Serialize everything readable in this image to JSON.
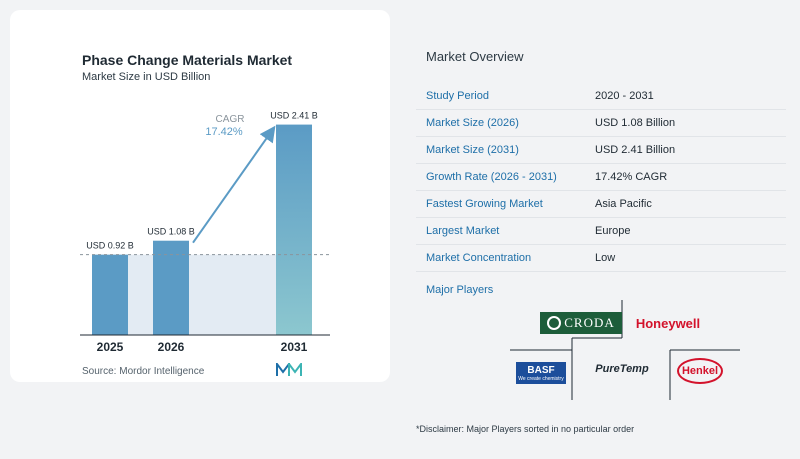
{
  "chart_data": {
    "type": "bar",
    "title": "Phase Change Materials Market",
    "subtitle": "Market Size in USD Billion",
    "categories": [
      "2025",
      "2026",
      "2031"
    ],
    "values": [
      0.92,
      1.08,
      2.41
    ],
    "data_labels": [
      "USD 0.92 B",
      "USD 1.08 B",
      "USD 2.41 B"
    ],
    "ylim": [
      0,
      2.6
    ],
    "annotation": {
      "label": "CAGR",
      "value": "17.42%"
    },
    "bar_color": "#5b9bc5",
    "bar_color_light": "#8cc7cf",
    "shade_color": "#e3ebf3"
  },
  "source": "Source:  Mordor Intelligence",
  "overview": {
    "title": "Market Overview",
    "rows": [
      {
        "label": "Study Period",
        "value": "2020 - 2031"
      },
      {
        "label": "Market Size (2026)",
        "value": "USD 1.08 Billion"
      },
      {
        "label": "Market Size (2031)",
        "value": "USD 2.41 Billion"
      },
      {
        "label": "Growth Rate (2026 - 2031)",
        "value": "17.42% CAGR"
      },
      {
        "label": "Fastest Growing Market",
        "value": "Asia Pacific"
      },
      {
        "label": "Largest Market",
        "value": "Europe"
      },
      {
        "label": "Market Concentration",
        "value": "Low"
      }
    ]
  },
  "players": {
    "title": "Major Players",
    "logos": {
      "croda": "CRODA",
      "honeywell": "Honeywell",
      "basf": "BASF",
      "basf_tagline": "We create chemistry",
      "puretemp": "PureTemp",
      "henkel": "Henkel"
    }
  },
  "disclaimer": "*Disclaimer: Major Players sorted in no particular order"
}
